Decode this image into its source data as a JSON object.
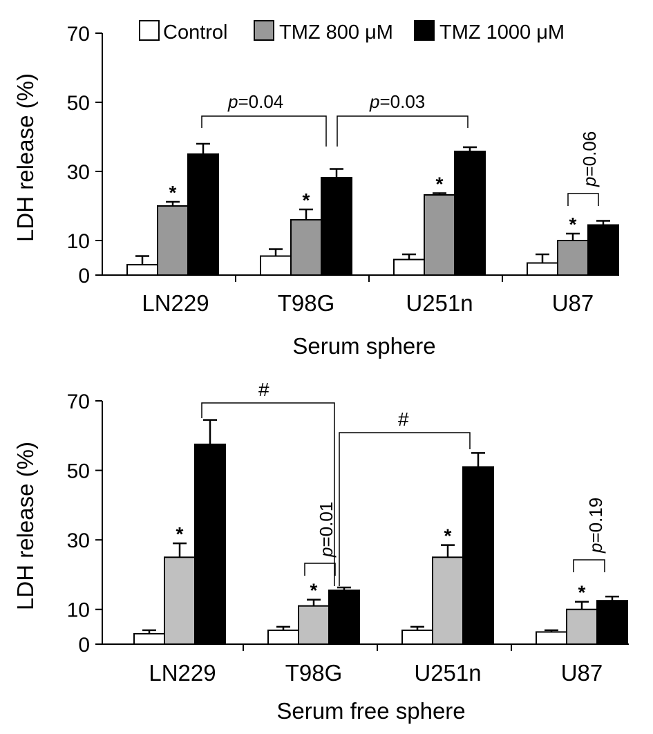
{
  "legend": [
    {
      "label": "Control",
      "color": "#ffffff"
    },
    {
      "label": "TMZ 800 μM",
      "color": "#999999"
    },
    {
      "label": "TMZ 1000 μM",
      "color": "#000000"
    }
  ],
  "chart_data": [
    {
      "type": "bar",
      "title": "",
      "xlabel": "Serum sphere",
      "ylabel": "LDH release (%)",
      "ylim": [
        0,
        70
      ],
      "yticks": [
        0,
        10,
        30,
        50,
        70
      ],
      "categories": [
        "LN229",
        "T98G",
        "U251n",
        "U87"
      ],
      "series": [
        {
          "name": "Control",
          "color": "#ffffff",
          "values": [
            3,
            5.5,
            4.5,
            3.5
          ],
          "errors": [
            2.5,
            2,
            1.5,
            2.5
          ]
        },
        {
          "name": "TMZ 800 μM",
          "color": "#999999",
          "values": [
            20,
            16,
            23.2,
            10
          ],
          "errors": [
            1.2,
            3,
            0.5,
            2
          ]
        },
        {
          "name": "TMZ 1000 μM",
          "color": "#000000",
          "values": [
            35,
            28.2,
            35.8,
            14.5
          ],
          "errors": [
            3,
            2.5,
            1.2,
            1.2
          ]
        }
      ],
      "annotations": {
        "stars": [
          "*",
          "*",
          "*",
          "*"
        ],
        "comparisons": [
          {
            "text_italic": "p",
            "text": "=0.04"
          },
          {
            "text_italic": "p",
            "text": "=0.03"
          },
          {
            "text_italic": "p",
            "text": "=0.06"
          }
        ]
      }
    },
    {
      "type": "bar",
      "title": "",
      "xlabel": "Serum free sphere",
      "ylabel": "LDH release (%)",
      "ylim": [
        0,
        70
      ],
      "yticks": [
        0,
        10,
        30,
        50,
        70
      ],
      "categories": [
        "LN229",
        "T98G",
        "U251n",
        "U87"
      ],
      "series": [
        {
          "name": "Control",
          "color": "#ffffff",
          "values": [
            3,
            4,
            4,
            3.5
          ],
          "errors": [
            1,
            1,
            1,
            0.5
          ]
        },
        {
          "name": "TMZ 800 μM",
          "color": "#c0c0c0",
          "values": [
            25,
            11,
            25,
            10
          ],
          "errors": [
            4,
            1.8,
            3.5,
            2.2
          ]
        },
        {
          "name": "TMZ 1000 μM",
          "color": "#000000",
          "values": [
            57.5,
            15.5,
            51,
            12.5
          ],
          "errors": [
            7,
            0.8,
            4,
            1.2
          ]
        }
      ],
      "annotations": {
        "stars": [
          "*",
          "*",
          "*",
          "*"
        ],
        "comparisons": [
          {
            "text": "#"
          },
          {
            "text": "#"
          },
          {
            "text_italic": "p",
            "text": "=0.01"
          },
          {
            "text_italic": "p",
            "text": "=0.19"
          }
        ]
      }
    }
  ]
}
